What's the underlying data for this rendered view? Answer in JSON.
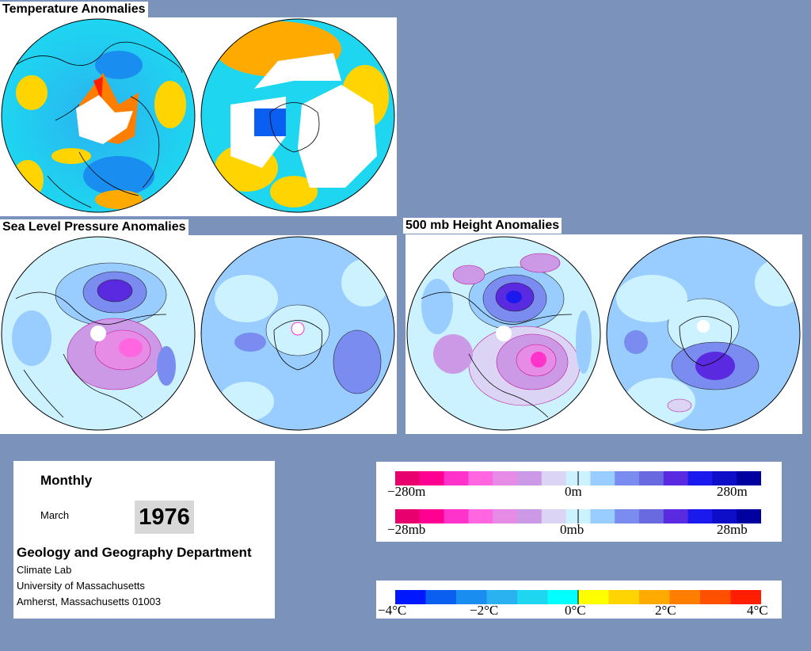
{
  "panels": {
    "temperature_title": "Temperature Anomalies",
    "slp_title": "Sea Level Pressure Anomalies",
    "height_title": "500 mb Height Anomalies"
  },
  "info": {
    "period": "Monthly",
    "month": "March",
    "year": "1976",
    "department": "Geology and Geography Department",
    "lab": "Climate Lab",
    "university": "University of Massachusetts",
    "address": "Amherst, Massachusetts 01003"
  },
  "legends": {
    "height": {
      "left": "−280m",
      "mid": "0m",
      "right": "280m"
    },
    "pressure": {
      "left": "−28mb",
      "mid": "0mb",
      "right": "28mb"
    },
    "temperature": [
      "−4°C",
      "−2°C",
      "0°C",
      "2°C",
      "4°C"
    ]
  },
  "colors": {
    "background": "#7b93bb",
    "anomaly_scale": [
      "#e8006e",
      "#ff0090",
      "#ff33cc",
      "#ff66e0",
      "#e68ce6",
      "#cc99e6",
      "#dcd4f4",
      "#ccf2ff",
      "#99ccff",
      "#7a8cf0",
      "#6a6ae0",
      "#5a2ae0",
      "#1a1aee",
      "#0e0ec8",
      "#0000a0"
    ],
    "temperature_scale": [
      "#0018ff",
      "#0a5ef0",
      "#1a8ef0",
      "#2ab2f0",
      "#1ed6f0",
      "#00ffff",
      "#ffff00",
      "#ffd400",
      "#ffaa00",
      "#ff7e00",
      "#ff5000",
      "#ff1e00"
    ]
  }
}
